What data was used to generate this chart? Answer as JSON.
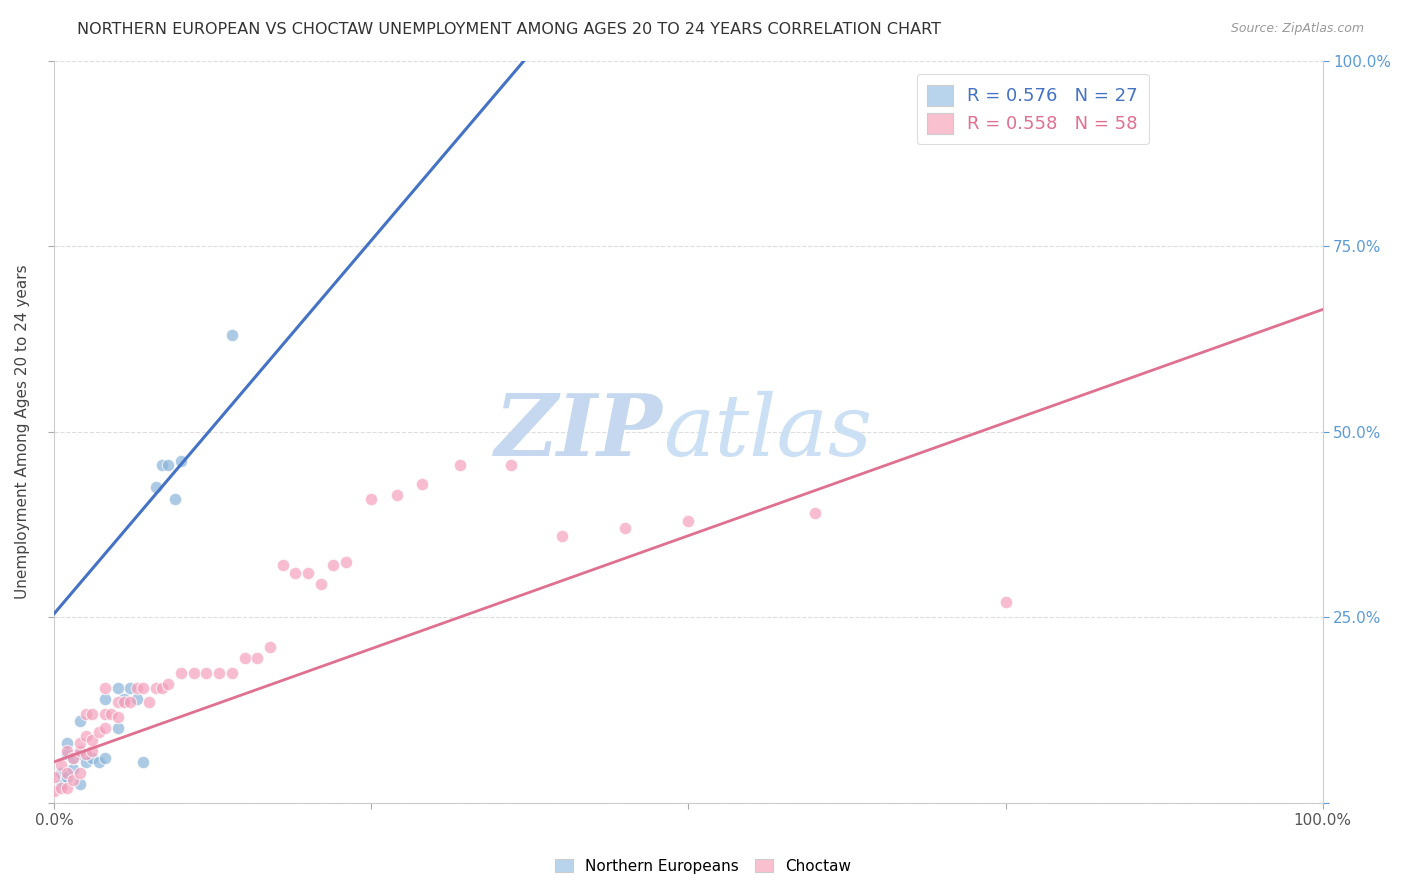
{
  "title": "NORTHERN EUROPEAN VS CHOCTAW UNEMPLOYMENT AMONG AGES 20 TO 24 YEARS CORRELATION CHART",
  "source": "Source: ZipAtlas.com",
  "ylabel": "Unemployment Among Ages 20 to 24 years",
  "xlim": [
    0.0,
    1.0
  ],
  "ylim": [
    0.0,
    1.0
  ],
  "blue_color": "#8ab4d9",
  "pink_color": "#f4a0bb",
  "blue_line_color": "#4472c4",
  "pink_line_color": "#e07090",
  "marker_size": 80,
  "watermark_zip": "ZIP",
  "watermark_atlas": "atlas",
  "watermark_color": "#ccddef",
  "background_color": "#ffffff",
  "grid_color": "#dddddd",
  "legend_r1": "0.576",
  "legend_n1": "27",
  "legend_r2": "0.558",
  "legend_n2": "58",
  "legend_color1": "#b8d4ec",
  "legend_color2": "#f9c0d0",
  "right_tick_color": "#5b9bd5",
  "ne_x": [
    0.005,
    0.005,
    0.01,
    0.01,
    0.01,
    0.015,
    0.015,
    0.02,
    0.02,
    0.02,
    0.025,
    0.03,
    0.035,
    0.04,
    0.04,
    0.05,
    0.05,
    0.055,
    0.06,
    0.065,
    0.07,
    0.08,
    0.085,
    0.09,
    0.095,
    0.1,
    0.14
  ],
  "ne_y": [
    0.025,
    0.04,
    0.035,
    0.065,
    0.08,
    0.045,
    0.06,
    0.025,
    0.065,
    0.11,
    0.055,
    0.06,
    0.055,
    0.06,
    0.14,
    0.1,
    0.155,
    0.14,
    0.155,
    0.14,
    0.055,
    0.425,
    0.455,
    0.455,
    0.41,
    0.46,
    0.63
  ],
  "ch_x": [
    0.0,
    0.0,
    0.005,
    0.005,
    0.01,
    0.01,
    0.01,
    0.015,
    0.015,
    0.02,
    0.02,
    0.02,
    0.025,
    0.025,
    0.025,
    0.03,
    0.03,
    0.03,
    0.035,
    0.04,
    0.04,
    0.04,
    0.045,
    0.05,
    0.05,
    0.055,
    0.06,
    0.065,
    0.07,
    0.075,
    0.08,
    0.085,
    0.09,
    0.1,
    0.11,
    0.12,
    0.13,
    0.14,
    0.15,
    0.16,
    0.17,
    0.18,
    0.19,
    0.2,
    0.21,
    0.22,
    0.23,
    0.25,
    0.27,
    0.29,
    0.32,
    0.36,
    0.4,
    0.45,
    0.5,
    0.6,
    0.75,
    0.76
  ],
  "ch_y": [
    0.015,
    0.035,
    0.02,
    0.05,
    0.02,
    0.04,
    0.07,
    0.03,
    0.06,
    0.04,
    0.07,
    0.08,
    0.065,
    0.09,
    0.12,
    0.07,
    0.085,
    0.12,
    0.095,
    0.1,
    0.12,
    0.155,
    0.12,
    0.115,
    0.135,
    0.135,
    0.135,
    0.155,
    0.155,
    0.135,
    0.155,
    0.155,
    0.16,
    0.175,
    0.175,
    0.175,
    0.175,
    0.175,
    0.195,
    0.195,
    0.21,
    0.32,
    0.31,
    0.31,
    0.295,
    0.32,
    0.325,
    0.41,
    0.415,
    0.43,
    0.455,
    0.455,
    0.36,
    0.37,
    0.38,
    0.39,
    0.27,
    0.97
  ],
  "blue_line_x0": 0.0,
  "blue_line_y0": 0.255,
  "blue_line_x1": 0.38,
  "blue_line_y1": 1.02,
  "pink_line_x0": 0.0,
  "pink_line_y0": 0.055,
  "pink_line_x1": 1.0,
  "pink_line_y1": 0.665
}
